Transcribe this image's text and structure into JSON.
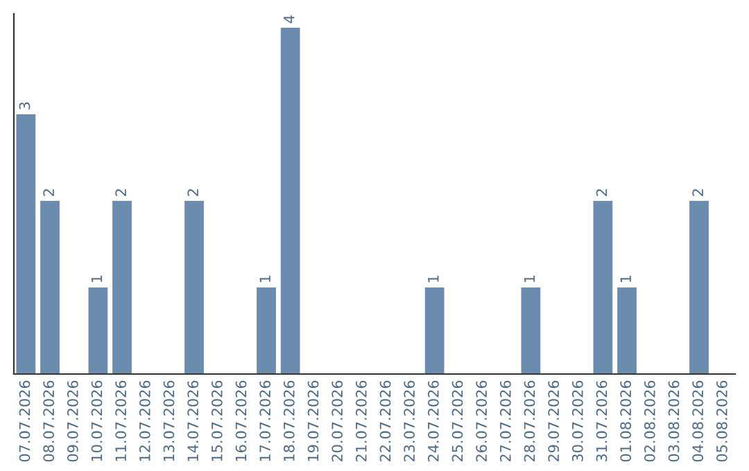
{
  "chart_data": {
    "type": "bar",
    "categories": [
      "07.07.2026",
      "08.07.2026",
      "09.07.2026",
      "10.07.2026",
      "11.07.2026",
      "12.07.2026",
      "13.07.2026",
      "14.07.2026",
      "15.07.2026",
      "16.07.2026",
      "17.07.2026",
      "18.07.2026",
      "19.07.2026",
      "20.07.2026",
      "21.07.2026",
      "22.07.2026",
      "23.07.2026",
      "24.07.2026",
      "25.07.2026",
      "26.07.2026",
      "27.07.2026",
      "28.07.2026",
      "29.07.2026",
      "30.07.2026",
      "31.07.2026",
      "01.08.2026",
      "02.08.2026",
      "03.08.2026",
      "04.08.2026",
      "05.08.2026"
    ],
    "values": [
      3,
      2,
      0,
      1,
      2,
      0,
      0,
      2,
      0,
      0,
      1,
      4,
      0,
      0,
      0,
      0,
      0,
      1,
      0,
      0,
      0,
      1,
      0,
      0,
      2,
      1,
      0,
      0,
      2,
      0
    ],
    "value_labels": [
      "3",
      "2",
      null,
      "1",
      "2",
      null,
      null,
      "2",
      null,
      null,
      "1",
      "4",
      null,
      null,
      null,
      null,
      null,
      "1",
      null,
      null,
      null,
      "1",
      null,
      null,
      "2",
      "1",
      null,
      null,
      "2",
      null
    ],
    "color": "#6b8cae",
    "grid": false,
    "legend": false
  }
}
